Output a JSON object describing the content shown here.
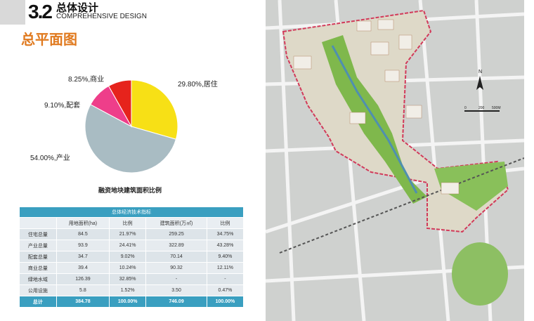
{
  "header": {
    "section_number": "3.2",
    "section_title": "总体设计",
    "section_subtitle": "COMPREHENSIVE DESIGN",
    "page_title": "总平面图"
  },
  "chart_data": {
    "type": "pie",
    "title": "融资地块建筑面积比例",
    "slices": [
      {
        "label": "居住",
        "value": 29.8,
        "display": "29.80%,居住",
        "color": "#f7e016"
      },
      {
        "label": "产业",
        "value": 54.0,
        "display": "54.00%,产业",
        "color": "#a9bcc3"
      },
      {
        "label": "配套",
        "value": 9.1,
        "display": "9.10%,配套",
        "color": "#ee3e8a"
      },
      {
        "label": "商业",
        "value": 8.25,
        "display": "8.25%,商业",
        "color": "#e6231c"
      }
    ]
  },
  "table": {
    "caption": "总体经济技术指标",
    "headers": [
      "",
      "用地面积(ha)",
      "比例",
      "建筑面积(万㎡)",
      "比例"
    ],
    "rows": [
      [
        "住宅总量",
        "84.5",
        "21.97%",
        "259.25",
        "34.75%"
      ],
      [
        "产业总量",
        "93.9",
        "24.41%",
        "322.89",
        "43.28%"
      ],
      [
        "配套总量",
        "34.7",
        "9.02%",
        "70.14",
        "9.40%"
      ],
      [
        "商业总量",
        "39.4",
        "10.24%",
        "90.32",
        "12.11%"
      ],
      [
        "绿地水域",
        "126.39",
        "32.85%",
        "-",
        "-"
      ],
      [
        "公用设施",
        "5.8",
        "1.52%",
        "3.50",
        "0.47%"
      ]
    ],
    "total": [
      "总计",
      "384.78",
      "100.00%",
      "746.09",
      "100.00%"
    ]
  },
  "map": {
    "north_label": "N",
    "scale_labels": [
      "0",
      "200",
      "500M"
    ]
  }
}
